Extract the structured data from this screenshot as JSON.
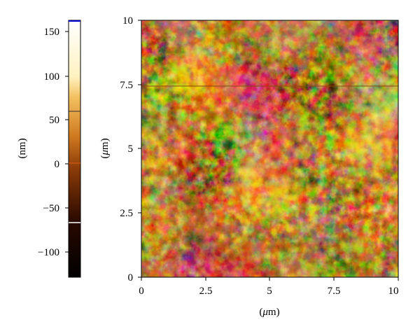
{
  "colorbar": {
    "unit_label": "(nm)",
    "ticks": [
      "150",
      "100",
      "50",
      "0",
      "−50",
      "−100"
    ],
    "tick_values": [
      150,
      100,
      50,
      0,
      -50,
      -100
    ],
    "range_nm": [
      -130,
      165
    ],
    "colors": {
      "low": "#000000",
      "mid": "#c86a14",
      "high": "#fff2c0",
      "top_marker": "#0000cc",
      "zero_marker": "#e05a10"
    },
    "markers_nm": [
      60,
      -68
    ]
  },
  "image": {
    "x_label_prefix": "(",
    "x_label_mu": "μ",
    "x_label_suffix": "m)",
    "y_label_prefix": "(",
    "y_label_mu": "μ",
    "y_label_suffix": "m)",
    "x_ticks": [
      "0",
      "2.5",
      "5",
      "7.5",
      "10"
    ],
    "y_ticks": [
      "0",
      "2.5",
      "5",
      "7.5",
      "10"
    ],
    "x_range_um": [
      0,
      10
    ],
    "y_range_um": [
      0,
      10
    ],
    "scan_line_at_um": 7.45,
    "scan_line_color": "#8a4a10"
  }
}
